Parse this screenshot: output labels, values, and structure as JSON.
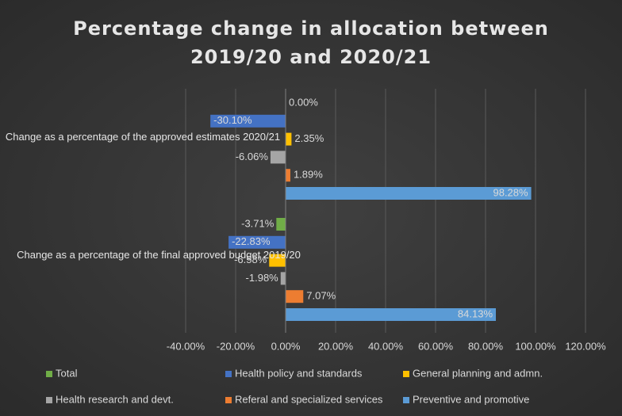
{
  "chart_data": {
    "type": "barh",
    "title": "Percentage change in allocation between 2019/20 and 2020/21",
    "categories": [
      "Change as a percentage of the approved estimates 2020/21",
      "Change as a percentage of the final approved budget 2019/20"
    ],
    "series": [
      {
        "name": "Total",
        "color": "#70ad47",
        "values": [
          0.0,
          -3.71
        ],
        "value_labels": [
          "0.00%",
          "-3.71%"
        ]
      },
      {
        "name": "Health policy and standards",
        "color": "#4472c4",
        "values": [
          -30.1,
          -22.83
        ],
        "value_labels": [
          "-30.10%",
          "-22.83%"
        ]
      },
      {
        "name": "General planning and admn.",
        "color": "#ffc000",
        "values": [
          2.35,
          -6.58
        ],
        "value_labels": [
          "2.35%",
          "-6.58%"
        ]
      },
      {
        "name": "Health research and devt.",
        "color": "#a5a5a5",
        "values": [
          -6.06,
          -1.98
        ],
        "value_labels": [
          "-6.06%",
          "-1.98%"
        ]
      },
      {
        "name": "Referal and specialized services",
        "color": "#ed7d31",
        "values": [
          1.89,
          7.07
        ],
        "value_labels": [
          "1.89%",
          "7.07%"
        ]
      },
      {
        "name": "Preventive and promotive",
        "color": "#5b9bd5",
        "values": [
          98.28,
          84.13
        ],
        "value_labels": [
          "98.28%",
          "84.13%"
        ]
      }
    ],
    "xlim": [
      -40,
      120
    ],
    "xticks": [
      {
        "value": -40,
        "label": "-40.00%"
      },
      {
        "value": -20,
        "label": "-20.00%"
      },
      {
        "value": 0,
        "label": "0.00%"
      },
      {
        "value": 20,
        "label": "20.00%"
      },
      {
        "value": 40,
        "label": "40.00%"
      },
      {
        "value": 60,
        "label": "60.00%"
      },
      {
        "value": 80,
        "label": "80.00%"
      },
      {
        "value": 100,
        "label": "100.00%"
      },
      {
        "value": 120,
        "label": "120.00%"
      }
    ],
    "grid": true,
    "legend": "bottom"
  }
}
